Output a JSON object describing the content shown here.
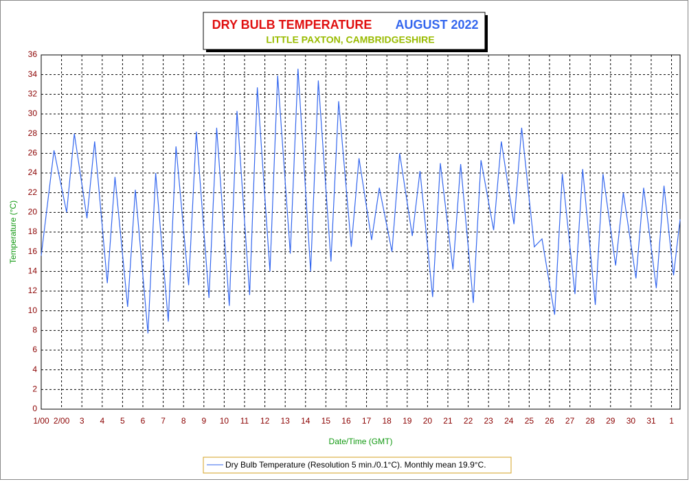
{
  "chart_data": {
    "type": "line",
    "title": "DRY BULB TEMPERATURE",
    "title_date": "AUGUST 2022",
    "subtitle": "LITTLE PAXTON, CAMBRIDGESHIRE",
    "x_label": "Date/Time (GMT)",
    "y_label": "Temperature (°C)",
    "xlim": [
      1,
      32.42
    ],
    "xticks": [
      {
        "value": 1,
        "label": "1/00"
      },
      {
        "value": 2,
        "label": "2/00"
      },
      3,
      4,
      5,
      6,
      7,
      8,
      9,
      10,
      11,
      12,
      13,
      14,
      15,
      16,
      17,
      18,
      19,
      20,
      21,
      22,
      23,
      24,
      25,
      26,
      27,
      28,
      29,
      30,
      31,
      {
        "value": 32,
        "label": "1"
      }
    ],
    "ylim": [
      0,
      36
    ],
    "yticks": [
      0,
      2,
      4,
      6,
      8,
      10,
      12,
      14,
      16,
      18,
      20,
      22,
      24,
      26,
      28,
      30,
      32,
      34,
      36
    ],
    "grid": true,
    "x": [
      1.0,
      1.63,
      2.25,
      2.63,
      3.25,
      3.63,
      4.25,
      4.63,
      5.25,
      5.63,
      6.25,
      6.63,
      7.25,
      7.63,
      8.25,
      8.63,
      9.25,
      9.63,
      10.25,
      10.63,
      11.25,
      11.63,
      12.25,
      12.63,
      13.25,
      13.63,
      14.25,
      14.63,
      15.25,
      15.63,
      16.25,
      16.63,
      17.25,
      17.63,
      18.25,
      18.63,
      19.25,
      19.63,
      20.25,
      20.63,
      21.25,
      21.63,
      22.25,
      22.63,
      23.25,
      23.63,
      24.25,
      24.63,
      25.25,
      25.63,
      26.25,
      26.63,
      27.25,
      27.63,
      28.25,
      28.63,
      29.25,
      29.63,
      30.25,
      30.63,
      31.25,
      31.63,
      32.1,
      32.42
    ],
    "series": [
      {
        "name": "Dry Bulb Temperature (Resolution 5 min./0.1°C). Monthly mean 19.9°C.",
        "color": "#3366ee",
        "values": [
          15.6,
          26.3,
          20,
          28,
          19.4,
          27.2,
          12.8,
          23.6,
          10.4,
          22.3,
          7.7,
          24,
          8.9,
          26.7,
          12.6,
          28.2,
          11.3,
          28.6,
          10.5,
          30.3,
          11.6,
          32.7,
          14,
          33.9,
          15.8,
          34.6,
          14,
          33.4,
          15,
          31.3,
          16.5,
          25.5,
          17.2,
          22.5,
          16,
          26,
          17.6,
          24.2,
          11.4,
          25,
          14.2,
          24.9,
          10.8,
          25.3,
          18.2,
          27.2,
          18.8,
          28.6,
          16.5,
          17.3,
          9.6,
          23.9,
          11.7,
          24.4,
          10.6,
          23.9,
          14.6,
          22,
          13.3,
          22.5,
          12.3,
          22.7,
          13.6,
          19.3
        ]
      }
    ]
  }
}
